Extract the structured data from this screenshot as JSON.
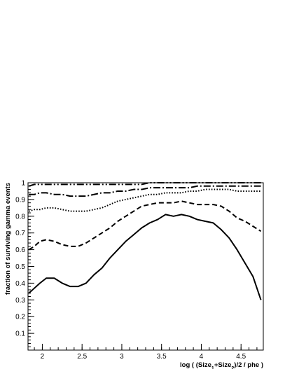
{
  "chart_data": {
    "type": "line",
    "title": "",
    "xlabel": "log ( (Size1+Size2)/2 / phe )",
    "xlabel_parts": {
      "prefix": "log ( (Size",
      "sub1": "1",
      "mid": "+Size",
      "sub2": "2",
      "suffix": ")/2 / phe )"
    },
    "ylabel": "fraction of surviving gamma events",
    "xlim": [
      1.82,
      4.78
    ],
    "ylim": [
      0,
      1.0
    ],
    "x_ticks": [
      2,
      2.5,
      3,
      3.5,
      4,
      4.5
    ],
    "x_tick_labels": [
      "2",
      "2.5",
      "3",
      "3.5",
      "4",
      "4.5"
    ],
    "y_ticks": [
      0.1,
      0.2,
      0.3,
      0.4,
      0.5,
      0.6,
      0.7,
      0.8,
      0.9,
      1
    ],
    "y_tick_labels": [
      "0.1",
      "0.2",
      "0.3",
      "0.4",
      "0.5",
      "0.6",
      "0.7",
      "0.8",
      "0.9",
      "1"
    ],
    "grid": false,
    "legend": "none",
    "x": [
      1.83,
      1.9,
      1.97,
      2.05,
      2.15,
      2.25,
      2.35,
      2.45,
      2.55,
      2.65,
      2.75,
      2.85,
      2.95,
      3.05,
      3.15,
      3.25,
      3.35,
      3.45,
      3.55,
      3.65,
      3.75,
      3.85,
      3.95,
      4.05,
      4.15,
      4.25,
      4.35,
      4.45,
      4.55,
      4.65,
      4.75
    ],
    "series": [
      {
        "style": "solid",
        "values": [
          0.34,
          0.37,
          0.4,
          0.43,
          0.43,
          0.4,
          0.38,
          0.38,
          0.4,
          0.45,
          0.49,
          0.55,
          0.6,
          0.65,
          0.69,
          0.73,
          0.76,
          0.78,
          0.81,
          0.8,
          0.81,
          0.8,
          0.78,
          0.77,
          0.76,
          0.72,
          0.67,
          0.6,
          0.52,
          0.44,
          0.3
        ]
      },
      {
        "style": "dashed",
        "values": [
          0.6,
          0.62,
          0.65,
          0.66,
          0.65,
          0.63,
          0.62,
          0.62,
          0.64,
          0.67,
          0.7,
          0.73,
          0.77,
          0.8,
          0.83,
          0.86,
          0.87,
          0.88,
          0.88,
          0.88,
          0.89,
          0.88,
          0.87,
          0.87,
          0.87,
          0.86,
          0.83,
          0.79,
          0.77,
          0.74,
          0.71
        ]
      },
      {
        "style": "dotted",
        "values": [
          0.83,
          0.84,
          0.84,
          0.85,
          0.85,
          0.84,
          0.83,
          0.83,
          0.83,
          0.84,
          0.85,
          0.87,
          0.89,
          0.9,
          0.91,
          0.92,
          0.93,
          0.93,
          0.94,
          0.94,
          0.94,
          0.95,
          0.95,
          0.96,
          0.96,
          0.96,
          0.96,
          0.95,
          0.95,
          0.95,
          0.95
        ]
      },
      {
        "style": "dashdot",
        "values": [
          0.93,
          0.93,
          0.94,
          0.94,
          0.93,
          0.93,
          0.92,
          0.92,
          0.92,
          0.93,
          0.94,
          0.94,
          0.95,
          0.95,
          0.96,
          0.96,
          0.97,
          0.97,
          0.97,
          0.97,
          0.97,
          0.97,
          0.98,
          0.98,
          0.98,
          0.98,
          0.98,
          0.98,
          0.98,
          0.98,
          0.98
        ]
      },
      {
        "style": "dashdotdot",
        "values": [
          0.98,
          0.99,
          0.99,
          0.99,
          0.99,
          0.99,
          0.99,
          0.99,
          0.99,
          0.99,
          0.99,
          0.99,
          0.99,
          0.99,
          0.99,
          0.99,
          1.0,
          1.0,
          1.0,
          1.0,
          1.0,
          1.0,
          1.0,
          1.0,
          1.0,
          1.0,
          1.0,
          1.0,
          1.0,
          1.0,
          1.0
        ]
      }
    ]
  }
}
